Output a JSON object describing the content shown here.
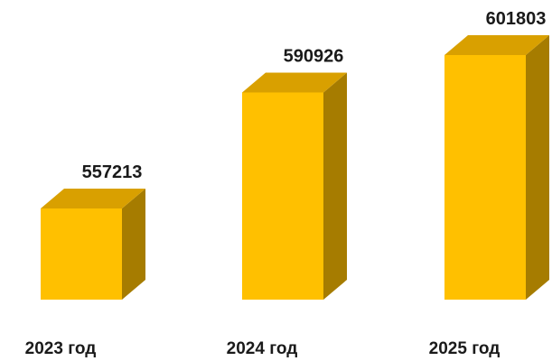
{
  "chart_data": {
    "type": "bar",
    "style": "3d-column",
    "categories": [
      "2023 год",
      "2024 год",
      "2025 год"
    ],
    "values": [
      557213,
      590926,
      601803
    ],
    "value_labels": [
      "557213",
      "590926",
      "601803"
    ],
    "title": "",
    "xlabel": "",
    "ylabel": "",
    "grid": false,
    "legend": "none",
    "colors": {
      "front": "#FFC000",
      "top": "#D9A000",
      "side": "#A67C00"
    }
  }
}
